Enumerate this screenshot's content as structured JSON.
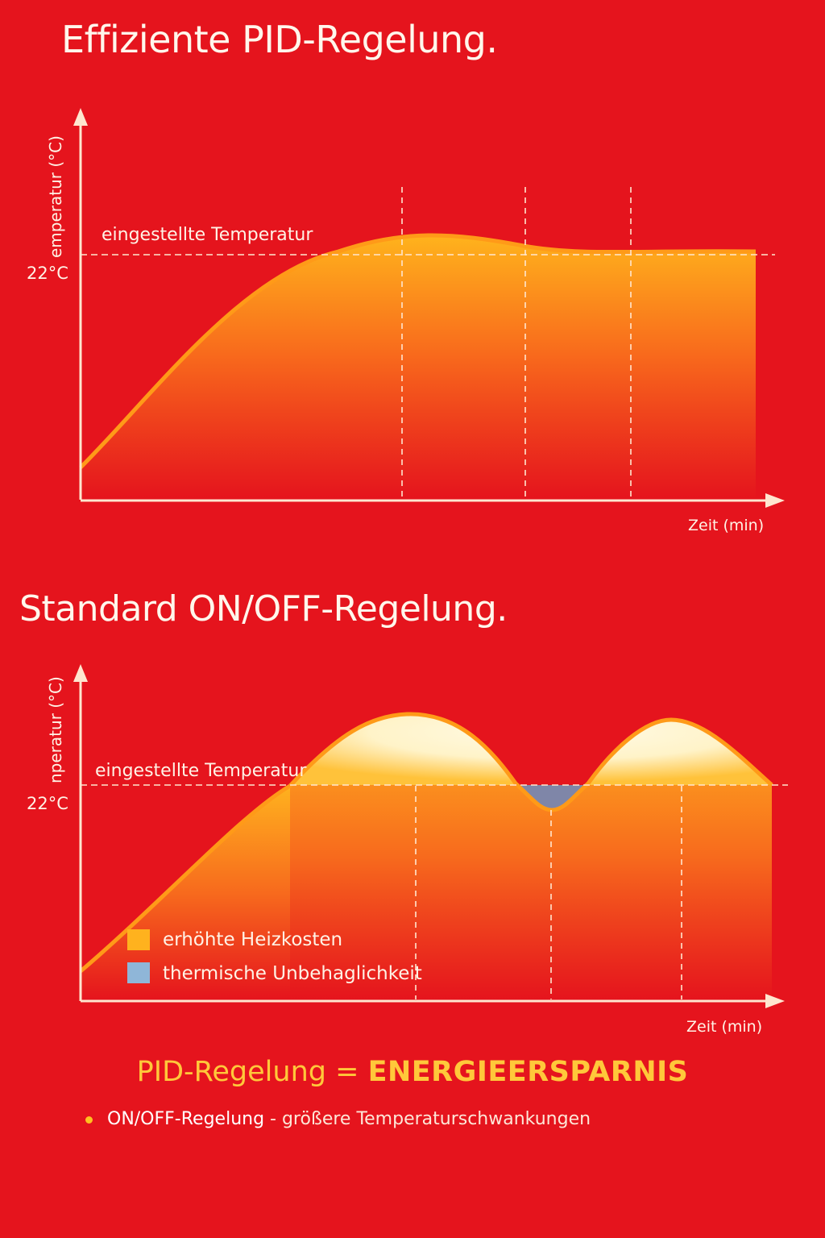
{
  "titles": {
    "pid": "Effiziente PID-Regelung.",
    "onoff": "Standard ON/OFF-Regelung."
  },
  "colors": {
    "background": "#e5141d",
    "curve_orange": "#ff8c1a",
    "fill_top": "#ffb21e",
    "overshoot": "#fff6d8",
    "discomfort": "#7f8cab",
    "accent": "#ffc83a"
  },
  "chart_data": [
    {
      "type": "area",
      "id": "pid",
      "ylabel": "Temperatur (°C)",
      "ylabel_visible": "emperatur (°C)",
      "xlabel": "Zeit (min)",
      "setpoint_label": "eingestellte Temperatur",
      "setpoint_tick": "22°C",
      "setpoint_value": 22
    },
    {
      "type": "area",
      "id": "onoff",
      "ylabel": "Temperatur (°C)",
      "ylabel_visible": "nperatur (°C)",
      "xlabel": "Zeit (min)",
      "setpoint_label": "eingestellte Temperatur",
      "setpoint_tick": "22°C",
      "setpoint_value": 22,
      "legend": [
        {
          "label": "erhöhte Heizkosten",
          "color": "#ffb21e"
        },
        {
          "label": "thermische Unbehaglichkeit",
          "color": "#8fb6d8"
        }
      ]
    }
  ],
  "footer": {
    "left": "PID-Regelung = ",
    "right": "ENERGIEERSPARNIS",
    "bullet_strong": "ON/OFF-Regelung",
    "bullet_rest": " - größere Temperaturschwankungen"
  }
}
